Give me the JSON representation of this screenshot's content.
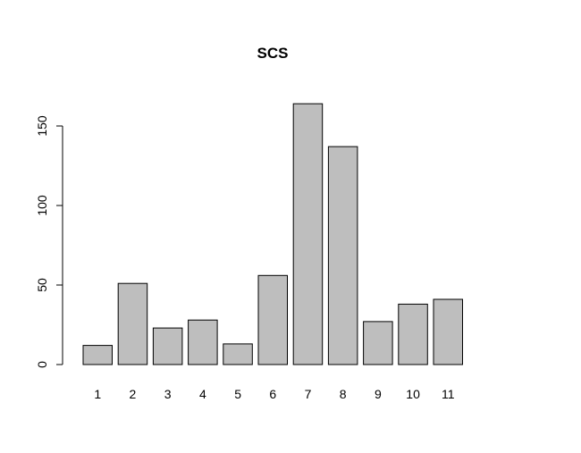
{
  "chart_data": {
    "type": "bar",
    "title": "SCS",
    "xlabel": "",
    "ylabel": "",
    "categories": [
      "1",
      "2",
      "3",
      "4",
      "5",
      "6",
      "7",
      "8",
      "9",
      "10",
      "11"
    ],
    "values": [
      12,
      51,
      23,
      28,
      13,
      56,
      164,
      137,
      27,
      38,
      41
    ],
    "ylim": [
      0,
      170
    ],
    "yticks": [
      "0",
      "50",
      "100",
      "150"
    ],
    "grid": false,
    "bar_color": "#bebebe",
    "edge_color": "#000000"
  }
}
